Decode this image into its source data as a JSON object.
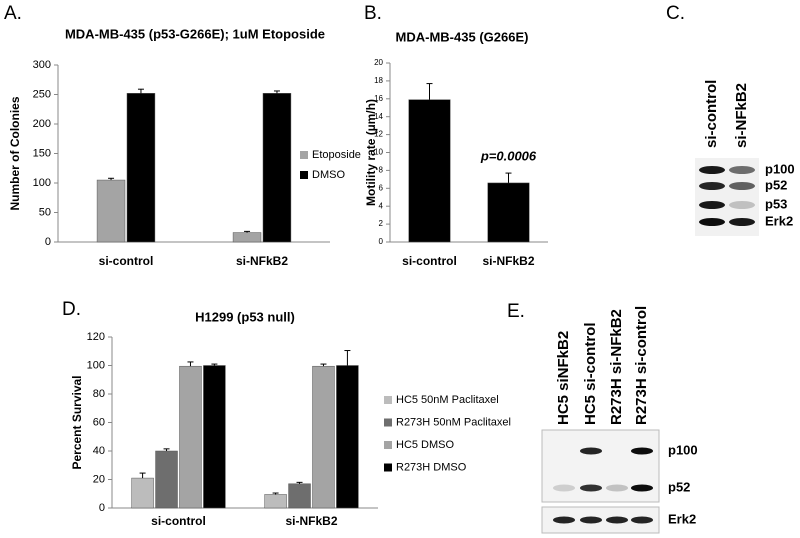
{
  "panels": [
    "A.",
    "B.",
    "C.",
    "D.",
    "E."
  ],
  "chart_data": [
    {
      "type": "bar",
      "title": "MDA-MB-435 (p53-G266E); 1uM Etoposide",
      "y_label": "Number of Colonies",
      "categories": [
        "si-control",
        "si-NFkB2"
      ],
      "series": [
        {
          "name": "Etoposide",
          "color": "#a4a4a4",
          "values": [
            105,
            16
          ],
          "errors": [
            3,
            2
          ]
        },
        {
          "name": "DMSO",
          "color": "#000000",
          "values": [
            252,
            252
          ],
          "errors": [
            7,
            4
          ]
        }
      ],
      "ylim": [
        0,
        300
      ],
      "yticks": [
        0,
        50,
        100,
        150,
        200,
        250,
        300
      ],
      "grid": false,
      "legend": "right"
    },
    {
      "type": "bar",
      "title": "MDA-MB-435 (G266E)",
      "y_label": "Motility rate (µm/h)",
      "categories": [
        "si-control",
        "si-NFkB2"
      ],
      "color": "#000000",
      "values": [
        15.9,
        6.6
      ],
      "errors": [
        1.8,
        1.1
      ],
      "annotation": "p=0.0006",
      "ylim": [
        0,
        20
      ],
      "yticks": [
        0,
        2,
        4,
        6,
        8,
        10,
        12,
        14,
        16,
        18,
        20
      ],
      "grid": false
    },
    {
      "type": "bar",
      "title": "H1299 (p53 null)",
      "y_label": "Percent Survival",
      "categories": [
        "si-control",
        "si-NFkB2"
      ],
      "series": [
        {
          "name": "HC5 50nM Paclitaxel",
          "color": "#bcbcbc",
          "values": [
            21,
            9.5
          ],
          "errors": [
            3.5,
            1
          ]
        },
        {
          "name": "R273H 50nM Paclitaxel",
          "color": "#6e6e6e",
          "values": [
            40,
            17
          ],
          "errors": [
            1.5,
            1
          ]
        },
        {
          "name": "HC5 DMSO",
          "color": "#a4a4a4",
          "values": [
            99.5,
            99.5
          ],
          "errors": [
            3,
            1.5
          ]
        },
        {
          "name": "R273H DMSO",
          "color": "#000000",
          "values": [
            100,
            100
          ],
          "errors": [
            1,
            10.5
          ]
        }
      ],
      "ylim": [
        0,
        120
      ],
      "yticks": [
        0,
        20,
        40,
        60,
        80,
        100,
        120
      ],
      "grid": false,
      "legend": "right"
    }
  ],
  "blots": [
    {
      "lanes": [
        "si-control",
        "si-NFkB2"
      ],
      "bands": [
        "p100",
        "p52",
        "p53",
        "Erk2"
      ]
    },
    {
      "lanes": [
        "HC5 siNFkB2",
        "HC5 si-control",
        "R273H si-NFkB2",
        "R273H si-control"
      ],
      "bands": [
        "p100",
        "p52",
        "Erk2"
      ]
    }
  ]
}
